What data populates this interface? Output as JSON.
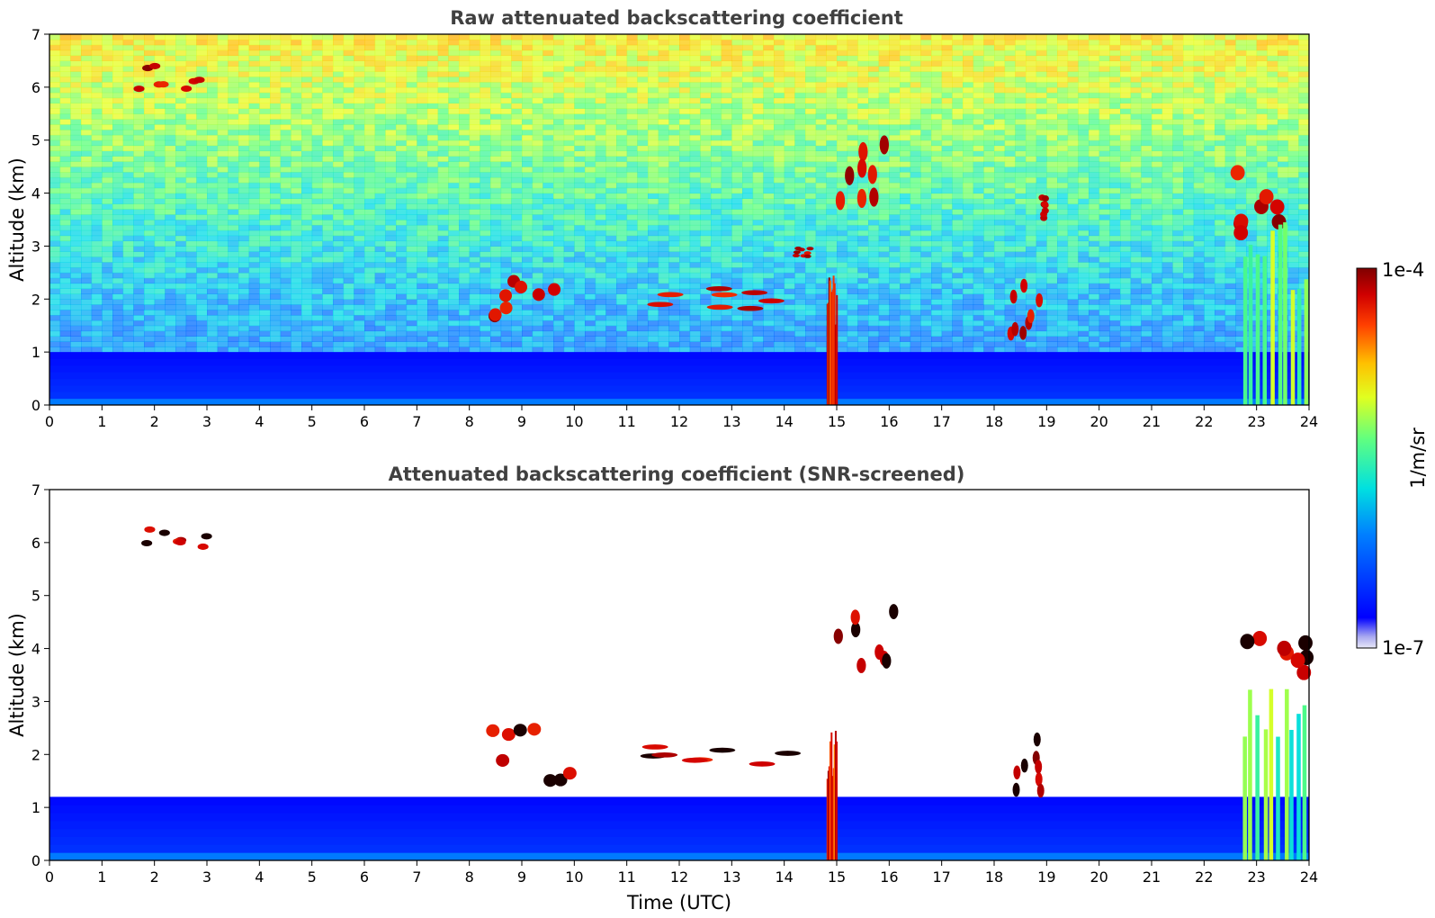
{
  "chart_data": [
    {
      "type": "heatmap",
      "title": "Raw attenuated backscattering coefficient",
      "xlabel": "",
      "ylabel": "Altitude (km)",
      "xlim": [
        0,
        24
      ],
      "ylim": [
        0,
        7
      ],
      "x_ticks": [
        0,
        1,
        2,
        3,
        4,
        5,
        6,
        7,
        8,
        9,
        10,
        11,
        12,
        13,
        14,
        15,
        16,
        17,
        18,
        19,
        20,
        21,
        22,
        23,
        24
      ],
      "y_ticks": [
        0,
        1,
        2,
        3,
        4,
        5,
        6,
        7
      ],
      "colorscale": "jet",
      "value_range": [
        "1e-7",
        "1e-4"
      ],
      "grid": false,
      "features": [
        {
          "kind": "boundary_layer",
          "t": [
            0,
            24
          ],
          "alt": [
            0,
            1.0
          ],
          "level": 0.22
        },
        {
          "kind": "noise_background",
          "t": [
            0,
            24
          ],
          "alt": [
            1.0,
            7.0
          ],
          "level": "increasing with altitude"
        },
        {
          "kind": "cloud",
          "t": [
            1.7,
            3.0
          ],
          "alt": [
            5.9,
            6.4
          ],
          "level": 1.0
        },
        {
          "kind": "cloud",
          "t": [
            8.4,
            9.9
          ],
          "alt": [
            1.5,
            2.5
          ],
          "level": 1.0
        },
        {
          "kind": "cloud",
          "t": [
            11.0,
            14.1
          ],
          "alt": [
            1.8,
            2.2
          ],
          "level": 1.0
        },
        {
          "kind": "cloud",
          "t": [
            14.2,
            14.5
          ],
          "alt": [
            2.8,
            3.0
          ],
          "level": 1.0
        },
        {
          "kind": "precipitation_column",
          "t": [
            14.8,
            15.0
          ],
          "alt": [
            0,
            2.5
          ],
          "level": 0.9
        },
        {
          "kind": "cloud",
          "t": [
            15.0,
            16.1
          ],
          "alt": [
            3.5,
            5.0
          ],
          "level": 1.0
        },
        {
          "kind": "cloud",
          "t": [
            18.3,
            19.0
          ],
          "alt": [
            1.3,
            2.4
          ],
          "level": 1.0
        },
        {
          "kind": "cloud",
          "t": [
            18.9,
            19.0
          ],
          "alt": [
            3.5,
            4.0
          ],
          "level": 1.0
        },
        {
          "kind": "cloud",
          "t": [
            22.3,
            24.0
          ],
          "alt": [
            3.2,
            4.4
          ],
          "level": 1.0
        },
        {
          "kind": "precipitation_column",
          "t": [
            22.7,
            24.0
          ],
          "alt": [
            0,
            3.5
          ],
          "level": 0.55
        }
      ]
    },
    {
      "type": "heatmap",
      "title": "Attenuated backscattering coefficient (SNR-screened)",
      "xlabel": "Time (UTC)",
      "ylabel": "Altitude (km)",
      "xlim": [
        0,
        24
      ],
      "ylim": [
        0,
        7
      ],
      "x_ticks": [
        0,
        1,
        2,
        3,
        4,
        5,
        6,
        7,
        8,
        9,
        10,
        11,
        12,
        13,
        14,
        15,
        16,
        17,
        18,
        19,
        20,
        21,
        22,
        23,
        24
      ],
      "y_ticks": [
        0,
        1,
        2,
        3,
        4,
        5,
        6,
        7
      ],
      "colorscale": "jet",
      "value_range": [
        "1e-7",
        "1e-4"
      ],
      "grid": false,
      "features": [
        {
          "kind": "boundary_layer",
          "t": [
            0,
            24
          ],
          "alt": [
            0,
            1.2
          ],
          "level": 0.22
        },
        {
          "kind": "cloud",
          "t": [
            1.7,
            3.0
          ],
          "alt": [
            5.9,
            6.4
          ],
          "level": 1.0
        },
        {
          "kind": "cloud",
          "t": [
            8.4,
            10.0
          ],
          "alt": [
            1.5,
            2.5
          ],
          "level": 1.0
        },
        {
          "kind": "cloud",
          "t": [
            11.0,
            14.1
          ],
          "alt": [
            1.8,
            2.2
          ],
          "level": 1.0
        },
        {
          "kind": "precipitation_column",
          "t": [
            14.8,
            15.0
          ],
          "alt": [
            0,
            2.5
          ],
          "level": 0.9
        },
        {
          "kind": "cloud",
          "t": [
            15.0,
            16.1
          ],
          "alt": [
            3.5,
            4.7
          ],
          "level": 1.0
        },
        {
          "kind": "cloud",
          "t": [
            18.3,
            19.0
          ],
          "alt": [
            1.3,
            2.4
          ],
          "level": 1.0
        },
        {
          "kind": "cloud",
          "t": [
            22.3,
            24.0
          ],
          "alt": [
            3.2,
            4.4
          ],
          "level": 1.0
        },
        {
          "kind": "precipitation_column",
          "t": [
            22.7,
            24.0
          ],
          "alt": [
            0,
            3.5
          ],
          "level": 0.55
        }
      ]
    }
  ],
  "colorbar": {
    "label": "1/m/sr",
    "max_label": "1e-4",
    "min_label": "1e-7",
    "colorscale": "jet"
  }
}
